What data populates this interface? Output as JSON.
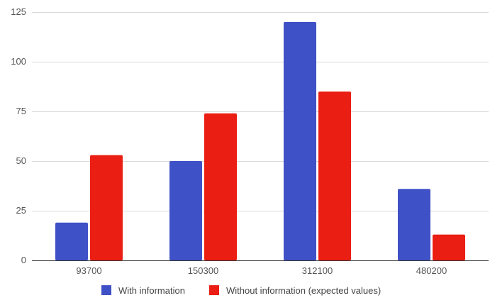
{
  "chart_data": {
    "type": "bar",
    "title": "",
    "xlabel": "",
    "ylabel": "",
    "categories": [
      "93700",
      "150300",
      "312100",
      "480200"
    ],
    "series": [
      {
        "name": "With information",
        "values": [
          19,
          50,
          120,
          36
        ],
        "color": "#3F51C7"
      },
      {
        "name": "Without information (expected values)",
        "values": [
          53,
          74,
          85,
          13
        ],
        "color": "#EA1E12"
      }
    ],
    "ylim": [
      0,
      125
    ],
    "yticks": [
      0,
      25,
      50,
      75,
      100,
      125
    ],
    "grid": true,
    "legend_position": "bottom"
  }
}
